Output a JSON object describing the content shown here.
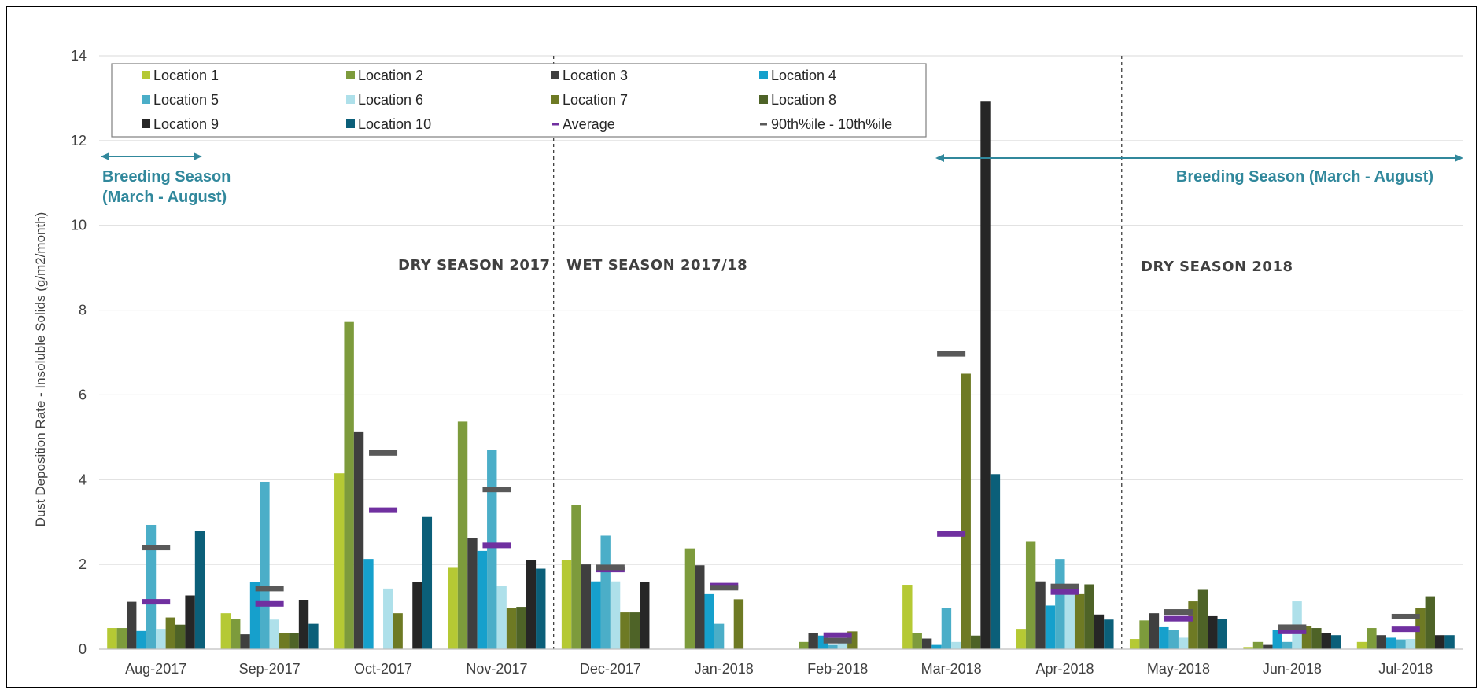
{
  "chart_data": {
    "type": "bar",
    "title": "",
    "xlabel": "",
    "ylabel": "Dust Deposition Rate - Insoluble Solids (g/m2/month)",
    "ylim": [
      0,
      14
    ],
    "yticks": [
      0,
      2,
      4,
      6,
      8,
      10,
      12,
      14
    ],
    "grid": true,
    "legend_position": "top-left",
    "categories": [
      "Aug-2017",
      "Sep-2017",
      "Oct-2017",
      "Nov-2017",
      "Dec-2017",
      "Jan-2018",
      "Feb-2018",
      "Mar-2018",
      "Apr-2018",
      "May-2018",
      "Jun-2018",
      "Jul-2018"
    ],
    "series": [
      {
        "name": "Location 1",
        "color": "#b5c934",
        "values": [
          0.5,
          0.85,
          4.15,
          1.92,
          2.1,
          null,
          null,
          1.52,
          0.48,
          0.24,
          0.05,
          0.17
        ]
      },
      {
        "name": "Location 2",
        "color": "#7d9b3c",
        "values": [
          0.5,
          0.72,
          7.72,
          5.37,
          3.4,
          2.38,
          0.17,
          0.38,
          2.55,
          0.68,
          0.17,
          0.5
        ]
      },
      {
        "name": "Location 3",
        "color": "#3f3f3f",
        "values": [
          1.12,
          0.35,
          5.12,
          2.63,
          2.0,
          1.98,
          0.38,
          0.25,
          1.6,
          0.85,
          0.1,
          0.33
        ]
      },
      {
        "name": "Location 4",
        "color": "#16a0cc",
        "values": [
          0.43,
          1.58,
          2.13,
          2.32,
          1.6,
          1.3,
          0.32,
          0.1,
          1.03,
          0.52,
          0.45,
          0.27
        ]
      },
      {
        "name": "Location 5",
        "color": "#4baec8",
        "values": [
          2.93,
          3.95,
          null,
          4.7,
          2.68,
          0.6,
          0.1,
          0.97,
          2.13,
          0.45,
          0.17,
          0.23
        ]
      },
      {
        "name": "Location 6",
        "color": "#aee0ea",
        "values": [
          0.48,
          0.7,
          1.43,
          1.5,
          1.6,
          null,
          0.22,
          0.17,
          1.53,
          0.27,
          1.13,
          0.24
        ]
      },
      {
        "name": "Location 7",
        "color": "#6e7a24",
        "values": [
          0.75,
          0.38,
          0.85,
          0.97,
          0.87,
          1.18,
          0.42,
          6.5,
          1.3,
          1.13,
          0.55,
          0.98
        ]
      },
      {
        "name": "Location 8",
        "color": "#4e6327",
        "values": [
          0.58,
          0.38,
          null,
          1.0,
          0.87,
          null,
          null,
          0.32,
          1.53,
          1.4,
          0.5,
          1.25
        ]
      },
      {
        "name": "Location 9",
        "color": "#262626",
        "values": [
          1.27,
          1.15,
          1.58,
          2.1,
          1.58,
          null,
          null,
          12.92,
          0.82,
          0.78,
          0.38,
          0.33
        ]
      },
      {
        "name": "Location 10",
        "color": "#0b5f79",
        "values": [
          2.8,
          0.6,
          3.12,
          1.9,
          null,
          null,
          null,
          4.13,
          0.7,
          0.72,
          0.33,
          0.33
        ]
      }
    ],
    "markers": [
      {
        "name": "Average",
        "color": "#7030a0",
        "values": [
          1.12,
          1.07,
          3.28,
          2.45,
          1.88,
          1.5,
          0.33,
          2.72,
          1.35,
          0.72,
          0.42,
          0.47
        ]
      },
      {
        "name": "90th%ile - 10th%ile",
        "color": "#595959",
        "values": [
          2.4,
          1.43,
          4.63,
          3.77,
          1.93,
          1.45,
          0.2,
          6.97,
          1.48,
          0.88,
          0.52,
          0.77
        ]
      }
    ],
    "annotations": {
      "dry_2017": "DRY SEASON 2017",
      "wet_2017_18": "WET SEASON 2017/18",
      "dry_2018": "DRY SEASON 2018",
      "breeding_left_line1": "Breeding Season",
      "breeding_left_line2": "(March - August)",
      "breeding_right": "Breeding Season (March - August)"
    }
  }
}
